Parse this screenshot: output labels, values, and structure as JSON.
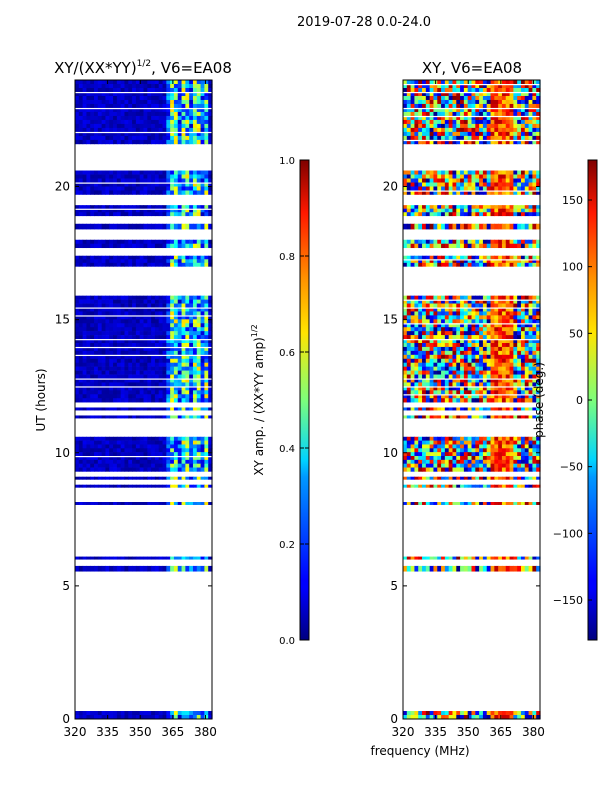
{
  "figure_title": "2019-07-28 0.0-24.0",
  "colors": {
    "line": "#000000",
    "background": "#ffffff"
  },
  "chart_data": [
    {
      "type": "heatmap",
      "title": "XY/(XX*YY)",
      "title_exponent": "1/2",
      "title_suffix": ", V6=EA08",
      "xlabel": "",
      "ylabel": "UT (hours)",
      "xlim": [
        320,
        383
      ],
      "ylim": [
        0,
        24
      ],
      "x_ticks": [
        320,
        335,
        350,
        365,
        380
      ],
      "y_ticks": [
        0,
        5,
        10,
        15,
        20
      ],
      "colorbar": {
        "label": "XY amp. / (XX*YY amp)",
        "label_exponent": "1/2",
        "range": [
          0.0,
          1.0
        ],
        "ticks": [
          "0.0",
          "0.2",
          "0.4",
          "0.6",
          "0.8",
          "1.0"
        ],
        "colormap": "jet"
      },
      "observed_ut_bands": [
        [
          0.0,
          0.3
        ],
        [
          5.55,
          5.75
        ],
        [
          6.0,
          6.1
        ],
        [
          8.05,
          8.15
        ],
        [
          8.7,
          8.8
        ],
        [
          9.0,
          9.1
        ],
        [
          9.3,
          10.6
        ],
        [
          11.3,
          11.4
        ],
        [
          11.6,
          11.7
        ],
        [
          11.9,
          15.9
        ],
        [
          17.0,
          17.4
        ],
        [
          17.7,
          18.0
        ],
        [
          18.4,
          18.6
        ],
        [
          18.9,
          19.3
        ],
        [
          19.7,
          20.6
        ],
        [
          21.6,
          24.0
        ]
      ],
      "notes": "Amplitude mostly low (~0.0-0.1, dark blue) across band; elevated (~0.3-0.6) near 362-380 MHz"
    },
    {
      "type": "heatmap",
      "title": "XY, V6=EA08",
      "xlabel": "frequency (MHz)",
      "ylabel": "",
      "xlim": [
        320,
        383
      ],
      "ylim": [
        0,
        24
      ],
      "x_ticks": [
        320,
        335,
        350,
        365,
        380
      ],
      "y_ticks": [
        0,
        5,
        10,
        15,
        20
      ],
      "colorbar": {
        "label": "phase (deg.)",
        "range": [
          -180,
          180
        ],
        "ticks": [
          "−150",
          "−100",
          "−50",
          "0",
          "50",
          "100",
          "150"
        ],
        "tick_values": [
          -150,
          -100,
          -50,
          0,
          50,
          100,
          150
        ],
        "colormap": "jet"
      },
      "observed_ut_bands": [
        [
          0.0,
          0.3
        ],
        [
          5.55,
          5.75
        ],
        [
          6.0,
          6.1
        ],
        [
          8.05,
          8.15
        ],
        [
          8.7,
          8.8
        ],
        [
          9.0,
          9.1
        ],
        [
          9.3,
          10.6
        ],
        [
          11.3,
          11.4
        ],
        [
          11.6,
          11.7
        ],
        [
          11.9,
          15.9
        ],
        [
          17.0,
          17.4
        ],
        [
          17.7,
          18.0
        ],
        [
          18.4,
          18.6
        ],
        [
          18.9,
          19.3
        ],
        [
          19.7,
          20.6
        ],
        [
          21.6,
          24.0
        ]
      ],
      "notes": "Phase noisy across full -180..180 range"
    }
  ]
}
